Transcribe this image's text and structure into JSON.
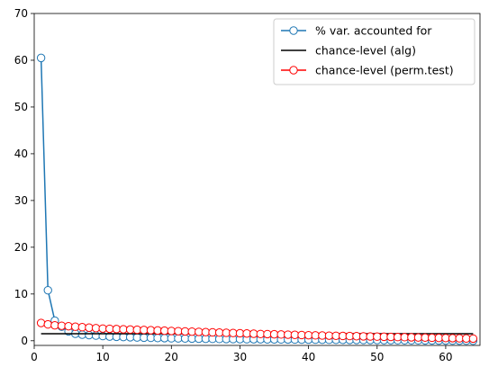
{
  "chart_data": {
    "type": "line",
    "title": "",
    "xlabel": "",
    "ylabel": "",
    "xlim": [
      0,
      65
    ],
    "ylim": [
      -1,
      70
    ],
    "xticks": [
      0,
      10,
      20,
      30,
      40,
      50,
      60
    ],
    "yticks": [
      0,
      10,
      20,
      30,
      40,
      50,
      60,
      70
    ],
    "grid": false,
    "legend_position": "top-right",
    "series": [
      {
        "name": "% var. accounted for",
        "color": "#1f77b4",
        "marker": "circle",
        "x": [
          1,
          2,
          3,
          4,
          5,
          6,
          7,
          8,
          9,
          10,
          11,
          12,
          13,
          14,
          15,
          16,
          17,
          18,
          19,
          20,
          21,
          22,
          23,
          24,
          25,
          26,
          27,
          28,
          29,
          30,
          31,
          32,
          33,
          34,
          35,
          36,
          37,
          38,
          39,
          40,
          41,
          42,
          43,
          44,
          45,
          46,
          47,
          48,
          49,
          50,
          51,
          52,
          53,
          54,
          55,
          56,
          57,
          58,
          59,
          60,
          61,
          62,
          63,
          64
        ],
        "y": [
          60.5,
          10.8,
          4.3,
          3.0,
          2.0,
          1.5,
          1.3,
          1.2,
          1.1,
          1.0,
          0.9,
          0.85,
          0.8,
          0.75,
          0.7,
          0.65,
          0.62,
          0.58,
          0.55,
          0.52,
          0.5,
          0.48,
          0.46,
          0.44,
          0.42,
          0.4,
          0.38,
          0.36,
          0.35,
          0.34,
          0.33,
          0.32,
          0.31,
          0.3,
          0.29,
          0.28,
          0.27,
          0.26,
          0.25,
          0.24,
          0.23,
          0.22,
          0.21,
          0.2,
          0.19,
          0.18,
          0.17,
          0.16,
          0.15,
          0.14,
          0.13,
          0.12,
          0.11,
          0.1,
          0.1,
          0.09,
          0.08,
          0.07,
          0.06,
          0.05,
          0.04,
          0.03,
          0.02,
          0.01
        ]
      },
      {
        "name": "chance-level (alg)",
        "color": "#000000",
        "marker": "none",
        "x": [
          1,
          64
        ],
        "y": [
          1.5,
          1.5
        ]
      },
      {
        "name": "chance-level (perm.test)",
        "color": "#ff0000",
        "marker": "circle",
        "x": [
          1,
          2,
          3,
          4,
          5,
          6,
          7,
          8,
          9,
          10,
          11,
          12,
          13,
          14,
          15,
          16,
          17,
          18,
          19,
          20,
          21,
          22,
          23,
          24,
          25,
          26,
          27,
          28,
          29,
          30,
          31,
          32,
          33,
          34,
          35,
          36,
          37,
          38,
          39,
          40,
          41,
          42,
          43,
          44,
          45,
          46,
          47,
          48,
          49,
          50,
          51,
          52,
          53,
          54,
          55,
          56,
          57,
          58,
          59,
          60,
          61,
          62,
          63,
          64
        ],
        "y": [
          3.8,
          3.5,
          3.3,
          3.2,
          3.1,
          3.0,
          2.9,
          2.8,
          2.7,
          2.6,
          2.55,
          2.5,
          2.45,
          2.4,
          2.35,
          2.3,
          2.25,
          2.2,
          2.15,
          2.1,
          2.05,
          2.0,
          1.95,
          1.9,
          1.85,
          1.8,
          1.75,
          1.7,
          1.65,
          1.6,
          1.55,
          1.5,
          1.45,
          1.42,
          1.38,
          1.34,
          1.3,
          1.26,
          1.22,
          1.18,
          1.15,
          1.12,
          1.09,
          1.06,
          1.03,
          1.0,
          0.97,
          0.94,
          0.91,
          0.88,
          0.85,
          0.82,
          0.79,
          0.76,
          0.73,
          0.7,
          0.67,
          0.64,
          0.61,
          0.58,
          0.55,
          0.52,
          0.49,
          0.46
        ]
      }
    ]
  }
}
